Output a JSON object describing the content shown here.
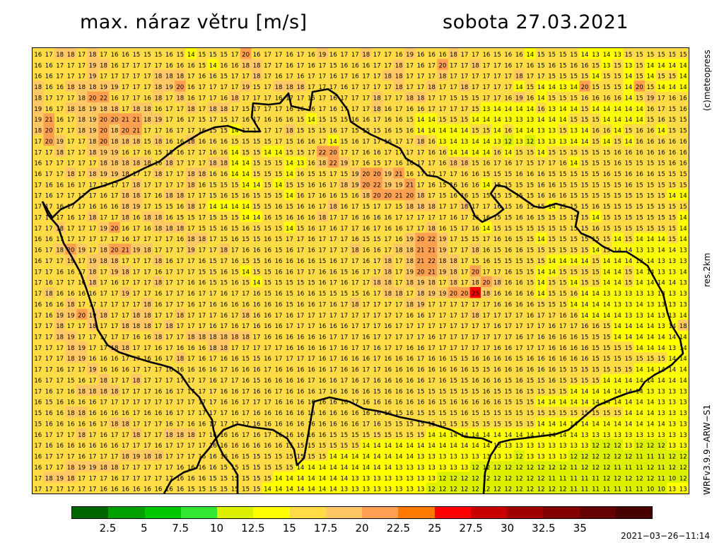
{
  "header": {
    "title": "max. náraz větru [m/s]",
    "date": "sobota 27.03.2021"
  },
  "side": {
    "copyright": "(c)meteopress",
    "resolution": "res.2km",
    "model": "WRFv3.9.9−ARW−S1"
  },
  "legend": {
    "colors": [
      "#006400",
      "#00A000",
      "#00C800",
      "#32E632",
      "#DCF000",
      "#FFFF00",
      "#FFDC46",
      "#FFC864",
      "#FFA050",
      "#FF7800",
      "#FF0000",
      "#C80000",
      "#A00000",
      "#820000",
      "#640000",
      "#460000"
    ],
    "labels": [
      "2.5",
      "5",
      "7.5",
      "10",
      "12.5",
      "15",
      "17.5",
      "20",
      "22.5",
      "25",
      "27.5",
      "30",
      "32.5",
      "35"
    ]
  },
  "timestamp": "2021−03−26−11:14",
  "grid": {
    "cols": 60,
    "rows": 41,
    "rows_data": [
      "16 17 18 18 17 18 17 16 16 15 15 15 16 15 14 15 15 15 17 20 16 17 17 16 17 16 19 16 17 17 18 17 17 16 19 16 16 16 18 17 17 16 15 16 16 14 15 15 15 15 14 13 14 13 15 15 15 15 15 15",
      "16 16 17 17 17 19 18 16 17 17 17 17 16 16 16 15 14 16 16 18 18 17 17 16 17 16 17 15 16 16 16 17 17 18 17 16 17 20 17 17 18 17 17 16 17 16 15 16 15 16 16 15 13 15 13 15 14 14 14 14",
      "16 16 17 17 17 19 17 17 17 17 17 18 18 18 17 16 16 15 17 17 18 17 16 17 16 17 17 16 17 16 17 17 18 18 17 17 17 18 17 17 17 17 17 17 18 17 17 15 15 15 15 14 15 15 14 15 14 15 15 14",
      "18 16 16 18 18 18 19 19 17 17 17 18 19 20 16 17 17 17 17 19 15 17 18 18 18 17 17 17 16 17 17 17 17 18 17 17 18 17 17 18 17 17 17 17 14 15 14 14 13 14 20 15 15 15 14 20 15 14 14 14",
      "18 17 17 17 18 20 22 16 17 17 16 18 17 18 16 17 17 16 18 17 17 17 16 17 17 15 17 16 17 17 17 18 17 17 18 18 17 17 15 15 15 17 17 16 19 16 14 15 15 15 16 16 16 16 14 15 19 17 16 16",
      "19 16 17 18 18 19 18 18 17 18 18 16 17 17 18 17 18 18 17 15 17 17 17 16 16 16 17 16 17 17 17 18 16 17 16 16 17 17 17 17 15 13 14 14 14 14 16 13 14 14 15 14 14 14 14 14 16 17 15 16",
      "19 21 16 17 18 19 20 20 21 21 18 19 17 16 17 15 17 15 17 16 17 16 16 16 15 14 15 15 15 16 16 17 16 16 15 14 14 15 15 15 14 14 14 13 13 13 14 14 14 15 15 15 14 14 14 14 15 16 15 15",
      "18 20 17 17 18 19 20 18 20 21 17 17 16 17 17 16 15 15 14 17 17 17 17 18 15 15 15 16 17 15 15 15 16 15 16 14 14 14 14 14 15 15 14 16 14 14 13 13 15 13 14 16 16 14 15 16 16 14 15 15",
      "17 20 19 17 17 18 20 18 18 18 15 18 16 16 18 16 16 16 15 15 15 15 17 15 16 16 17 14 15 16 17 17 16 17 17 18 16 13 14 13 14 14 13 12 13 12 13 13 13 14 14 15 14 15 14 16 16 16 16 16",
      "17 17 18 17 17 18 19 19 16 17 16 15 15 16 17 17 16 16 14 15 15 14 14 15 15 17 22 20 17 17 16 16 17 17 17 17 16 16 14 14 14 14 16 14 15 15 14 15 15 15 15 15 15 16 16 16 16 16 16 16",
      "16 17 17 17 17 17 18 18 18 18 18 16 18 17 17 17 18 18 14 14 15 15 15 14 13 16 18 22 19 17 16 15 17 16 16 17 17 16 18 18 15 16 17 16 17 15 17 17 16 14 15 15 15 16 15 15 15 15 16 16",
      "16 17 17 18 17 18 19 19 18 17 17 18 17 17 18 18 16 16 14 14 15 15 15 14 16 15 15 17 15 19 20 20 19 21 16 17 17 17 17 16 16 15 15 15 16 16 16 15 15 15 15 15 16 15 16 16 16 15 15 15",
      "17 16 16 16 17 17 17 17 17 18 17 17 17 17 18 16 15 15 15 14 14 15 14 15 15 16 16 17 18 19 20 22 19 19 21 17 16 15 16 16 16 14 15 15 15 15 16 16 15 15 15 15 15 15 16 15 15 15 15 15",
      "17 16 17 17 17 17 16 17 18 18 17 16 18 18 17 17 15 16 15 16 15 15 15 14 16 17 16 16 15 16 18 20 20 21 20 18 17 15 16 16 15 15 15 15 15 15 16 16 16 15 15 15 15 15 15 15 15 15 14 14",
      "17 17 16 17 17 16 16 16 18 19 17 15 15 16 18 17 14 14 14 14 15 15 16 15 16 16 17 18 16 17 15 17 17 15 18 18 18 17 17 18 17 17 16 15 16 15 15 14 15 15 15 16 15 15 15 15 15 15 15 15",
      "17 17 17 16 17 18 17 17 18 16 18 18 16 15 15 17 15 15 15 14 14 16 15 16 16 16 18 17 17 16 16 16 16 17 17 17 17 17 16 17 16 16 15 15 16 16 15 15 15 15 15 14 15 15 15 15 15 15 15 14",
      "17 17 18 17 17 17 19 20 16 17 16 18 18 18 17 15 15 16 15 16 15 15 15 14 15 16 17 16 17 17 16 17 16 16 17 17 18 16 15 17 16 14 15 15 15 15 15 15 15 15 15 16 15 15 15 15 15 15 15 14",
      "16 16 17 17 17 17 17 17 16 17 17 17 17 16 18 18 17 15 16 15 15 16 15 17 17 16 17 17 17 16 15 15 17 16 19 20 22 19 17 15 15 17 16 16 15 15 14 15 15 15 15 15 15 14 15 14 14 14 15 14",
      "16 17 18 20 19 17 18 20 21 19 18 17 17 17 19 17 17 18 17 16 16 16 15 16 17 16 17 17 17 18 16 16 17 18 18 21 21 19 17 17 18 16 15 16 16 15 15 15 15 15 15 14 15 14 14 13 13 14 14 13",
      "16 17 17 19 17 19 18 18 17 17 17 18 16 17 17 16 15 17 16 15 15 16 16 16 16 16 15 16 17 17 16 17 18 17 18 21 22 18 18 17 15 16 15 15 15 15 15 14 14 14 14 15 14 14 14 13 14 13 13 13",
      "17 17 16 16 17 18 17 19 18 17 17 16 17 17 17 15 15 16 15 14 15 15 16 16 17 17 16 16 15 16 17 17 18 17 19 20 21 19 18 17 20 17 17 16 15 15 14 14 15 15 15 15 14 14 15 14 14 13 13 14",
      "17 16 17 17 16 18 17 16 17 17 17 18 17 17 16 16 15 15 16 15 14 15 15 15 15 15 16 17 16 17 17 18 18 17 18 19 18 17 18 17 18 20 18 16 16 15 14 15 15 14 15 15 14 14 15 14 14 14 14 13",
      "17 18 16 16 16 16 17 17 19 17 17 16 17 17 16 17 17 16 17 17 16 15 16 15 16 16 15 15 15 15 16 17 18 18 17 18 19 19 20 20 25 18 16 16 16 16 14 15 15 16 14 14 13 13 13 13 13 13 13 13",
      "16 16 16 18 17 17 17 17 17 17 18 16 17 17 16 17 16 16 16 16 16 16 16 15 16 16 17 16 17 18 17 17 17 17 18 19 17 17 17 17 17 17 16 16 16 16 15 15 15 14 14 14 14 13 13 14 13 13 13 13",
      "17 16 19 19 20 19 18 17 17 18 18 17 17 18 17 17 17 16 17 18 16 16 17 16 17 17 17 17 17 17 17 17 17 17 16 16 17 17 17 17 18 17 17 17 17 16 17 17 16 16 14 14 14 14 13 13 14 13 13 14",
      "17 17 18 17 17 18 17 17 18 18 18 17 18 17 17 17 16 17 16 17 16 16 16 17 17 17 16 16 16 17 17 17 16 17 17 17 17 17 17 17 17 17 16 17 17 17 17 16 17 17 16 16 15 14 14 14 14 13 14 18",
      "17 17 18 19 17 17 17 17 17 16 16 18 17 17 18 18 18 18 18 18 17 16 16 16 16 16 16 17 17 17 16 17 17 17 17 17 16 17 17 17 17 17 17 17 16 17 16 16 16 16 15 15 15 14 14 14 14 14 14 14",
      "17 17 17 18 19 17 17 18 18 17 17 16 17 16 16 16 18 18 17 17 17 17 17 16 16 16 16 17 16 17 17 16 17 17 16 16 17 17 17 17 17 17 16 16 17 17 17 16 16 16 16 15 15 15 15 14 14 14 13 14",
      "17 17 17 18 19 16 16 16 17 17 16 16 17 18 17 16 17 16 16 15 15 16 17 17 17 17 16 17 16 16 16 17 16 16 16 17 16 16 15 15 16 16 16 16 15 16 16 16 16 16 16 15 15 15 15 15 15 15 14 14",
      "17 17 16 17 17 19 16 16 16 17 17 17 16 16 16 16 16 17 16 16 16 17 16 16 16 16 16 17 16 16 17 17 16 16 16 16 16 16 16 16 15 15 16 16 16 16 16 16 15 15 15 15 15 15 15 14 14 14 14 14",
      "16 17 17 15 16 17 18 17 17 18 17 17 17 17 17 17 16 17 17 16 15 16 16 16 16 17 16 16 17 16 17 16 16 16 16 16 17 16 15 15 16 16 16 15 16 15 15 16 15 15 15 15 14 14 14 14 14 14 14 14",
      "17 16 17 16 18 18 18 18 17 17 17 16 16 17 17 17 17 16 16 17 16 16 17 16 16 16 17 16 16 16 16 15 16 16 16 15 15 15 15 15 15 16 15 15 16 15 15 15 15 14 14 14 14 14 14 14 13 13 13 13",
      "16 15 16 16 16 16 17 17 17 17 17 17 17 17 17 17 17 16 16 17 17 17 16 16 16 16 16 16 16 17 16 16 16 16 16 16 16 15 16 16 16 16 16 15 15 15 14 14 14 14 14 14 14 14 14 14 14 13 13 13",
      "15 16 16 18 18 16 16 16 16 17 16 16 16 17 17 17 17 17 16 17 16 16 16 16 16 16 16 16 16 16 16 16 16 15 16 15 15 15 15 16 15 15 15 15 15 15 15 15 15 15 15 15 15 15 14 14 14 13 13 13",
      "15 16 16 16 16 16 17 18 18 17 17 17 16 17 16 16 17 17 17 17 16 16 16 16 16 16 16 16 16 16 17 16 15 15 15 15 15 15 15 15 15 15 15 15 15 15 14 14 14 14 14 14 14 14 14 14 14 14 13 13",
      "16 17 17 17 18 17 16 17 17 18 17 17 18 18 18 17 16 16 16 17 16 17 16 16 16 16 16 15 15 15 15 15 15 15 15 15 14 14 14 14 14 14 14 14 14 14 14 14 14 14 13 13 13 13 13 13 13 13 13 13",
      "17 16 16 16 16 16 16 16 17 17 17 16 17 17 17 17 16 16 16 16 16 16 16 15 15 15 15 15 15 15 14 14 14 14 14 14 14 14 14 14 14 14 13 13 13 13 13 13 13 13 13 12 12 12 13 12 12 12 13 13",
      "16 17 17 17 16 17 17 17 18 19 18 18 17 17 17 16 16 16 16 15 15 15 15 15 15 15 15 14 14 14 14 14 14 14 14 13 13 13 13 13 13 13 13 13 12 13 13 13 13 12 12 12 12 12 12 11 11 11 12 12",
      "16 17 17 18 19 19 18 18 17 17 17 17 17 16 16 16 16 15 15 15 15 15 15 15 14 14 14 14 14 14 14 14 14 13 13 13 13 13 13 13 12 12 12 12 12 12 12 12 12 11 12 12 12 11 11 11 12 11 12 12",
      "17 18 19 18 17 17 17 16 17 17 17 17 17 16 16 16 15 15 15 15 15 15 14 14 14 14 14 14 14 13 13 13 13 13 13 13 13 12 12 12 12 12 12 12 12 12 12 11 11 11 11 11 12 12 12 12 12 11 10 12",
      "17 17 17 17 17 17 16 16 16 16 16 16 16 16 15 15 15 15 15 15 15 14 14 14 14 14 14 14 13 13 13 13 13 13 13 13 12 12 12 12 12 12 12 12 12 12 12 12 12 11 11 11 11 11 11 11 10 10 13 13"
    ]
  }
}
